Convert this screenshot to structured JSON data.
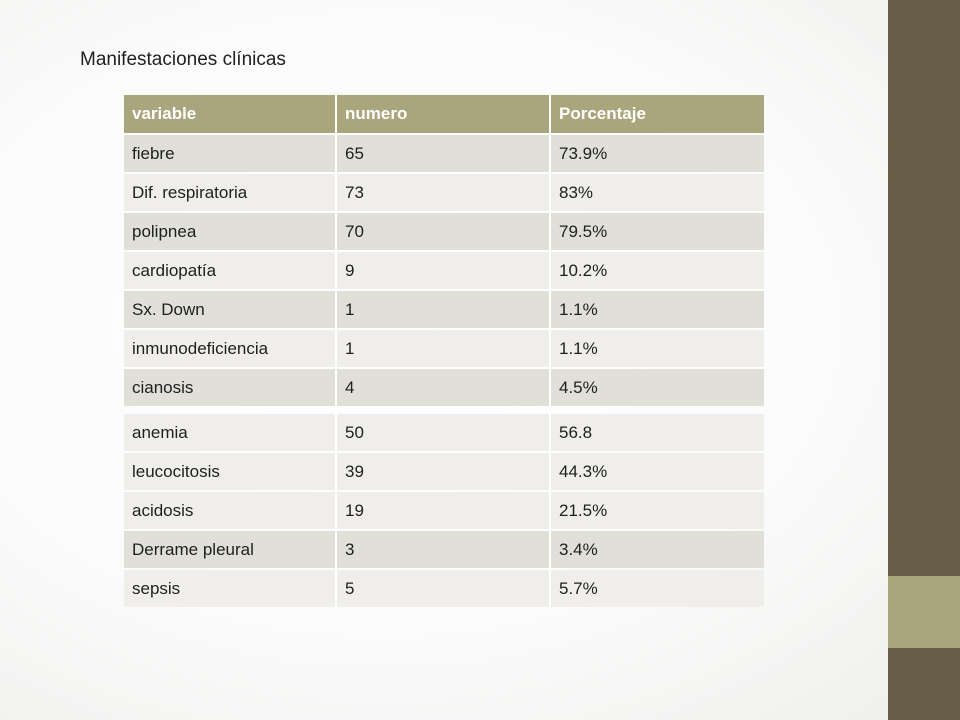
{
  "title": "Manifestaciones clínicas",
  "table": {
    "headers": [
      "variable",
      "numero",
      "Porcentaje"
    ],
    "rows": [
      [
        "fiebre",
        "65",
        "73.9%"
      ],
      [
        "Dif. respiratoria",
        "73",
        "83%"
      ],
      [
        "polipnea",
        "70",
        "79.5%"
      ],
      [
        "cardiopatía",
        "9",
        "10.2%"
      ],
      [
        "Sx. Down",
        "1",
        "1.1%"
      ],
      [
        "inmunodeficiencia",
        "1",
        "1.1%"
      ],
      [
        "cianosis",
        "4",
        "4.5%"
      ],
      [
        "anemia",
        "50",
        "56.8"
      ],
      [
        "leucocitosis",
        "39",
        "44.3%"
      ],
      [
        "acidosis",
        "19",
        "21.5%"
      ],
      [
        "Derrame pleural",
        "3",
        "3.4%"
      ],
      [
        "sepsis",
        "5",
        "5.7%"
      ]
    ]
  },
  "colors": {
    "side_bar": "#685e47",
    "accent": "#a9a57c",
    "row_dark": "#e0dfd8",
    "row_light": "#efeeea"
  }
}
